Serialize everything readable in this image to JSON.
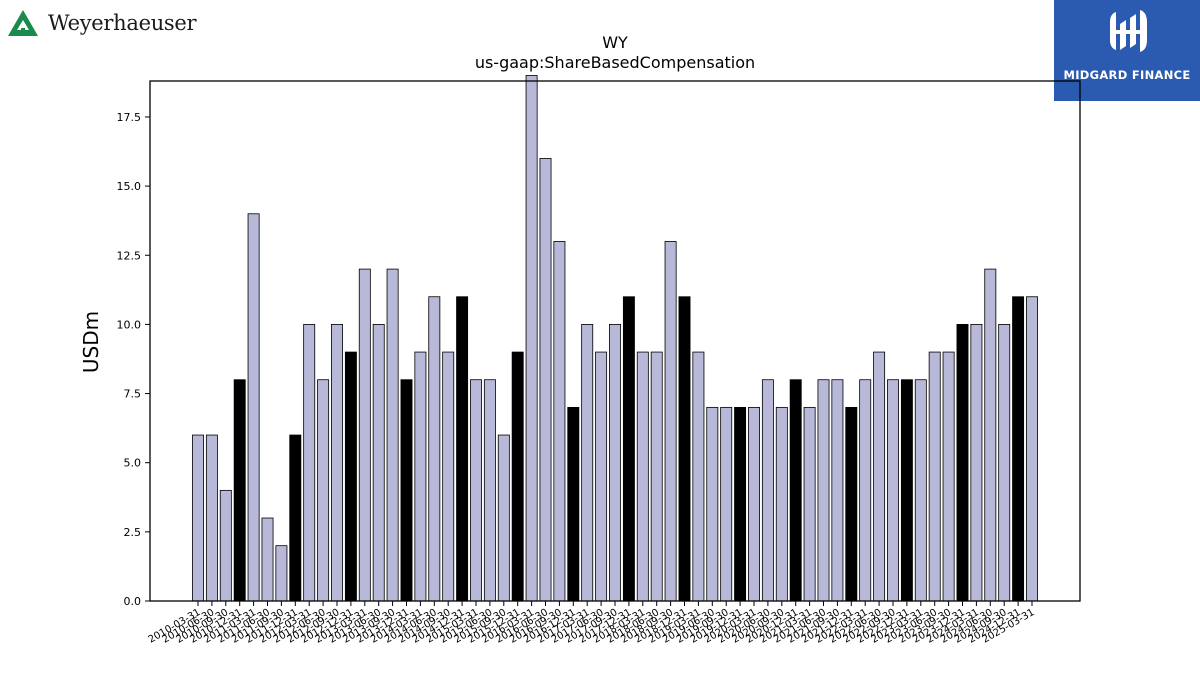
{
  "brand_left": {
    "name": "Weyerhaeuser",
    "icon": "weyerhaeuser-tree-logo-icon",
    "color": "#1a8b4c"
  },
  "brand_right": {
    "name": "MIDGARD FINANCE",
    "icon": "midgard-finance-logo-icon",
    "background": "#2b5bb0"
  },
  "chart_data": {
    "type": "bar",
    "title": "WY",
    "subtitle": "us-gaap:ShareBasedCompensation",
    "xlabel": "",
    "ylabel": "USDm",
    "ylim": [
      0,
      18.8
    ],
    "yticks": [
      "0.0",
      "2.5",
      "5.0",
      "7.5",
      "10.0",
      "12.5",
      "15.0",
      "17.5"
    ],
    "grid": false,
    "colors": {
      "quarter": "#b8b8d8",
      "annual": "#000000",
      "edge": "#000000"
    },
    "categories": [
      "2010-03-31",
      "2010-06-30",
      "2010-09-30",
      "2010-12-31",
      "2011-03-31",
      "2011-06-30",
      "2011-09-30",
      "2011-12-31",
      "2012-03-31",
      "2012-06-30",
      "2012-09-30",
      "2012-12-31",
      "2013-03-31",
      "2013-06-30",
      "2013-09-30",
      "2013-12-31",
      "2014-03-31",
      "2014-06-30",
      "2014-09-30",
      "2014-12-31",
      "2015-03-31",
      "2015-06-30",
      "2015-09-30",
      "2015-12-31",
      "2016-03-31",
      "2016-06-30",
      "2016-09-30",
      "2016-12-31",
      "2017-03-31",
      "2017-06-30",
      "2017-09-30",
      "2017-12-31",
      "2018-03-31",
      "2018-06-30",
      "2018-09-30",
      "2018-12-31",
      "2019-03-31",
      "2019-06-30",
      "2019-09-30",
      "2019-12-31",
      "2020-03-31",
      "2020-06-30",
      "2020-09-30",
      "2020-12-31",
      "2021-03-31",
      "2021-06-30",
      "2021-09-30",
      "2021-12-31",
      "2022-03-31",
      "2022-06-30",
      "2022-09-30",
      "2022-12-31",
      "2023-03-31",
      "2023-06-30",
      "2023-09-30",
      "2023-12-31",
      "2024-03-31",
      "2024-06-30",
      "2024-09-30",
      "2024-12-31",
      "2025-03-31"
    ],
    "values": [
      6,
      6,
      4,
      8,
      14,
      3,
      2,
      6,
      10,
      8,
      10,
      9,
      12,
      10,
      12,
      8,
      9,
      11,
      9,
      11,
      8,
      8,
      6,
      9,
      19,
      16,
      13,
      7,
      10,
      9,
      10,
      11,
      9,
      9,
      13,
      11,
      9,
      7,
      7,
      7,
      7,
      8,
      7,
      8,
      7,
      8,
      8,
      7,
      8,
      9,
      8,
      8,
      8,
      9,
      9,
      10,
      10,
      12,
      10,
      11,
      11
    ],
    "annual": [
      false,
      false,
      false,
      true,
      false,
      false,
      false,
      true,
      false,
      false,
      false,
      true,
      false,
      false,
      false,
      true,
      false,
      false,
      false,
      true,
      false,
      false,
      false,
      true,
      false,
      false,
      false,
      true,
      false,
      false,
      false,
      true,
      false,
      false,
      false,
      true,
      false,
      false,
      false,
      true,
      false,
      false,
      false,
      true,
      false,
      false,
      false,
      true,
      false,
      false,
      false,
      true,
      false,
      false,
      false,
      true,
      false,
      false,
      false,
      true,
      false
    ]
  }
}
